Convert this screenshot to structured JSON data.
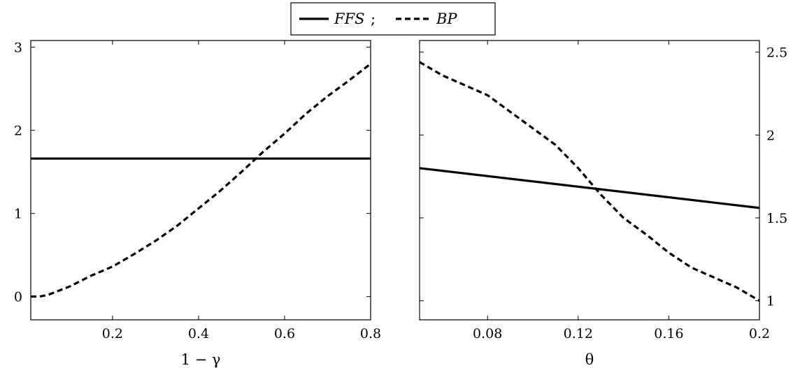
{
  "legend": {
    "entries": [
      {
        "name": "FFS",
        "style": "solid"
      },
      {
        "name": "BP",
        "style": "dashed"
      }
    ],
    "separator": ";",
    "placement": "top-center"
  },
  "chart_data": [
    {
      "type": "line",
      "xlabel": "1 − γ",
      "ylabel": "",
      "xlim": [
        0.01,
        0.8
      ],
      "ylim": [
        -0.28,
        3.08
      ],
      "xticks": [
        0.2,
        0.4,
        0.6,
        0.8
      ],
      "xtick_labels": [
        "0.2",
        "0.4",
        "0.6",
        "0.8"
      ],
      "yticks": [
        0,
        1,
        2,
        3
      ],
      "ytick_labels": [
        "0",
        "1",
        "2",
        "3"
      ],
      "yaxis_side": "left",
      "grid": false,
      "series": [
        {
          "name": "FFS",
          "style": "solid",
          "color": "#000000",
          "x": [
            0.01,
            0.8
          ],
          "y": [
            1.66,
            1.66
          ]
        },
        {
          "name": "BP",
          "style": "dashed",
          "color": "#000000",
          "x": [
            0.01,
            0.03,
            0.05,
            0.1,
            0.15,
            0.2,
            0.25,
            0.3,
            0.35,
            0.4,
            0.45,
            0.5,
            0.55,
            0.6,
            0.65,
            0.7,
            0.75,
            0.8
          ],
          "y": [
            0.0,
            0.0,
            0.02,
            0.12,
            0.25,
            0.36,
            0.51,
            0.67,
            0.85,
            1.06,
            1.27,
            1.5,
            1.74,
            1.96,
            2.2,
            2.41,
            2.6,
            2.8
          ]
        }
      ]
    },
    {
      "type": "line",
      "xlabel": "θ",
      "ylabel": "",
      "xlim": [
        0.05,
        0.2
      ],
      "ylim": [
        0.885,
        2.57
      ],
      "xticks": [
        0.08,
        0.12,
        0.16,
        0.2
      ],
      "xtick_labels": [
        "0.08",
        "0.12",
        "0.16",
        "0.2"
      ],
      "yticks": [
        1,
        1.5,
        2,
        2.5
      ],
      "ytick_labels": [
        "1",
        "1.5",
        "2",
        "2.5"
      ],
      "yaxis_side": "right",
      "grid": false,
      "series": [
        {
          "name": "FFS",
          "style": "solid",
          "color": "#000000",
          "x": [
            0.05,
            0.2
          ],
          "y": [
            1.8,
            1.56
          ]
        },
        {
          "name": "BP",
          "style": "dashed",
          "color": "#000000",
          "x": [
            0.05,
            0.06,
            0.07,
            0.08,
            0.09,
            0.1,
            0.11,
            0.12,
            0.13,
            0.14,
            0.15,
            0.16,
            0.17,
            0.18,
            0.19,
            0.2
          ],
          "y": [
            2.44,
            2.36,
            2.3,
            2.24,
            2.14,
            2.04,
            1.94,
            1.8,
            1.64,
            1.5,
            1.4,
            1.29,
            1.2,
            1.14,
            1.08,
            1.0
          ]
        }
      ]
    }
  ]
}
